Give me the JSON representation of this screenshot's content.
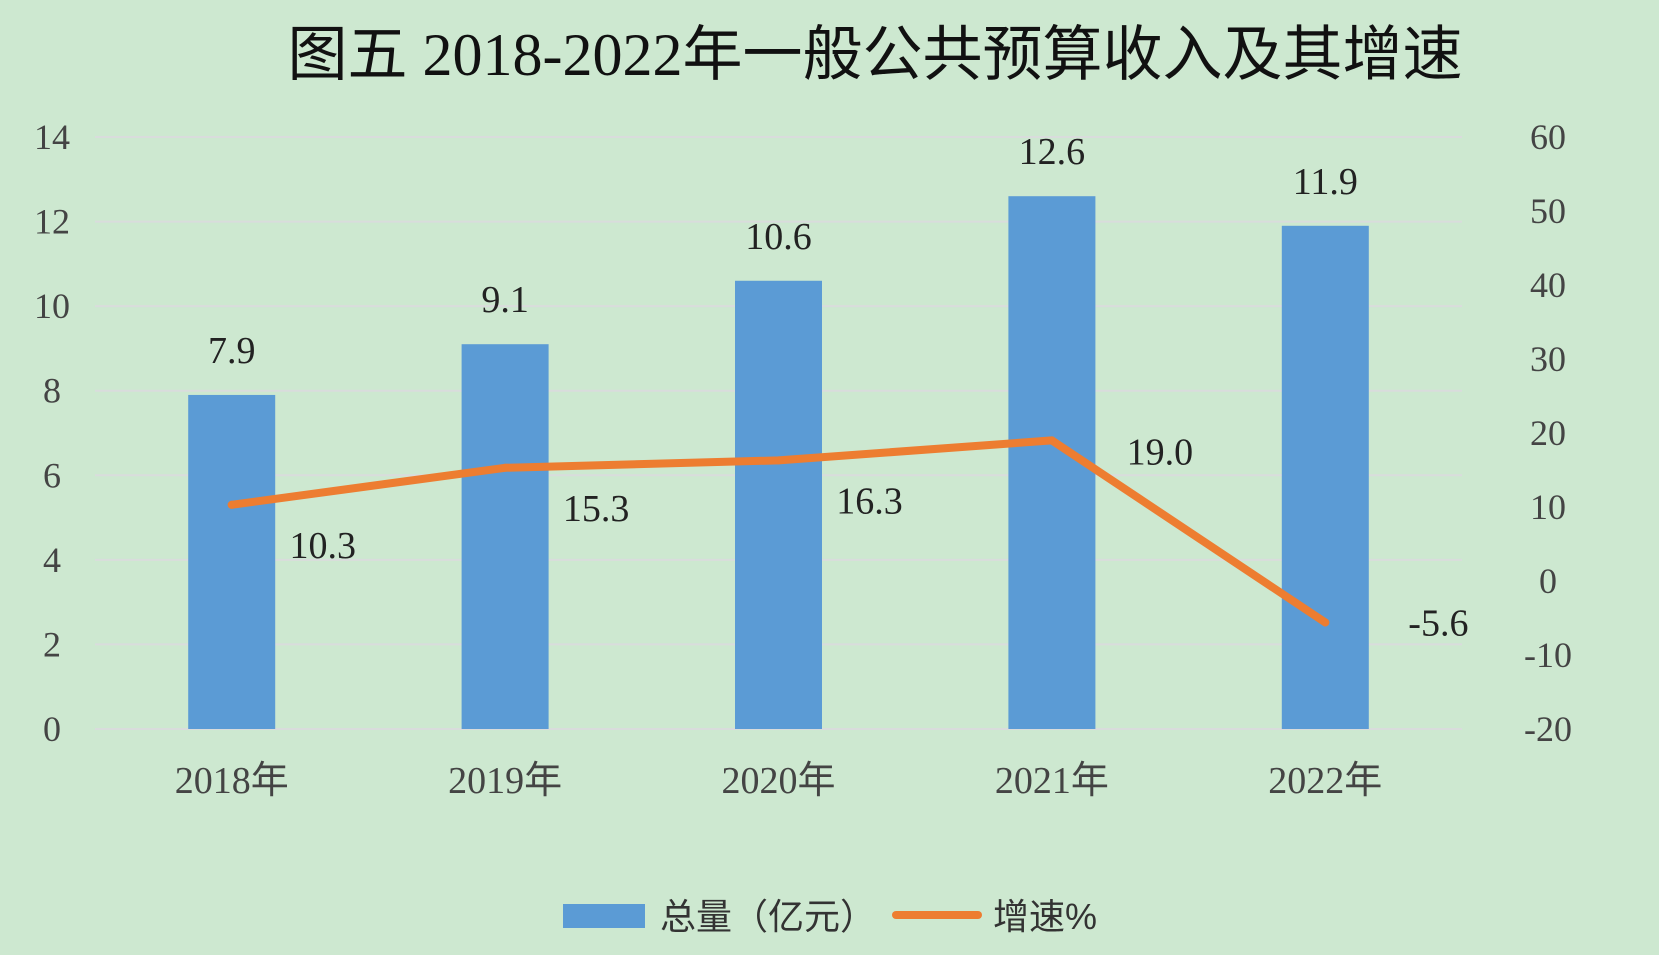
{
  "chart_data": {
    "type": "bar",
    "title": "图五 2018-2022年一般公共预算收入及其增速",
    "categories": [
      "2018年",
      "2019年",
      "2020年",
      "2021年",
      "2022年"
    ],
    "series": [
      {
        "name": "总量（亿元）",
        "type": "bar",
        "axis": "left",
        "color": "#5b9bd5",
        "values": [
          7.9,
          9.1,
          10.6,
          12.6,
          11.9
        ],
        "labels": [
          "7.9",
          "9.1",
          "10.6",
          "12.6",
          "11.9"
        ]
      },
      {
        "name": "增速%",
        "type": "line",
        "axis": "right",
        "color": "#ed7d31",
        "values": [
          10.3,
          15.3,
          16.3,
          19.0,
          -5.6
        ],
        "labels": [
          "10.3",
          "15.3",
          "16.3",
          "19.0",
          "-5.6"
        ]
      }
    ],
    "y_left": {
      "min": 0,
      "max": 14,
      "ticks": [
        "0",
        "2",
        "4",
        "6",
        "8",
        "10",
        "12",
        "14"
      ]
    },
    "y_right": {
      "min": -20,
      "max": 60,
      "ticks": [
        "-20",
        "-10",
        "0",
        "10",
        "20",
        "30",
        "40",
        "50",
        "60"
      ]
    },
    "grid": true,
    "legend_position": "bottom"
  }
}
